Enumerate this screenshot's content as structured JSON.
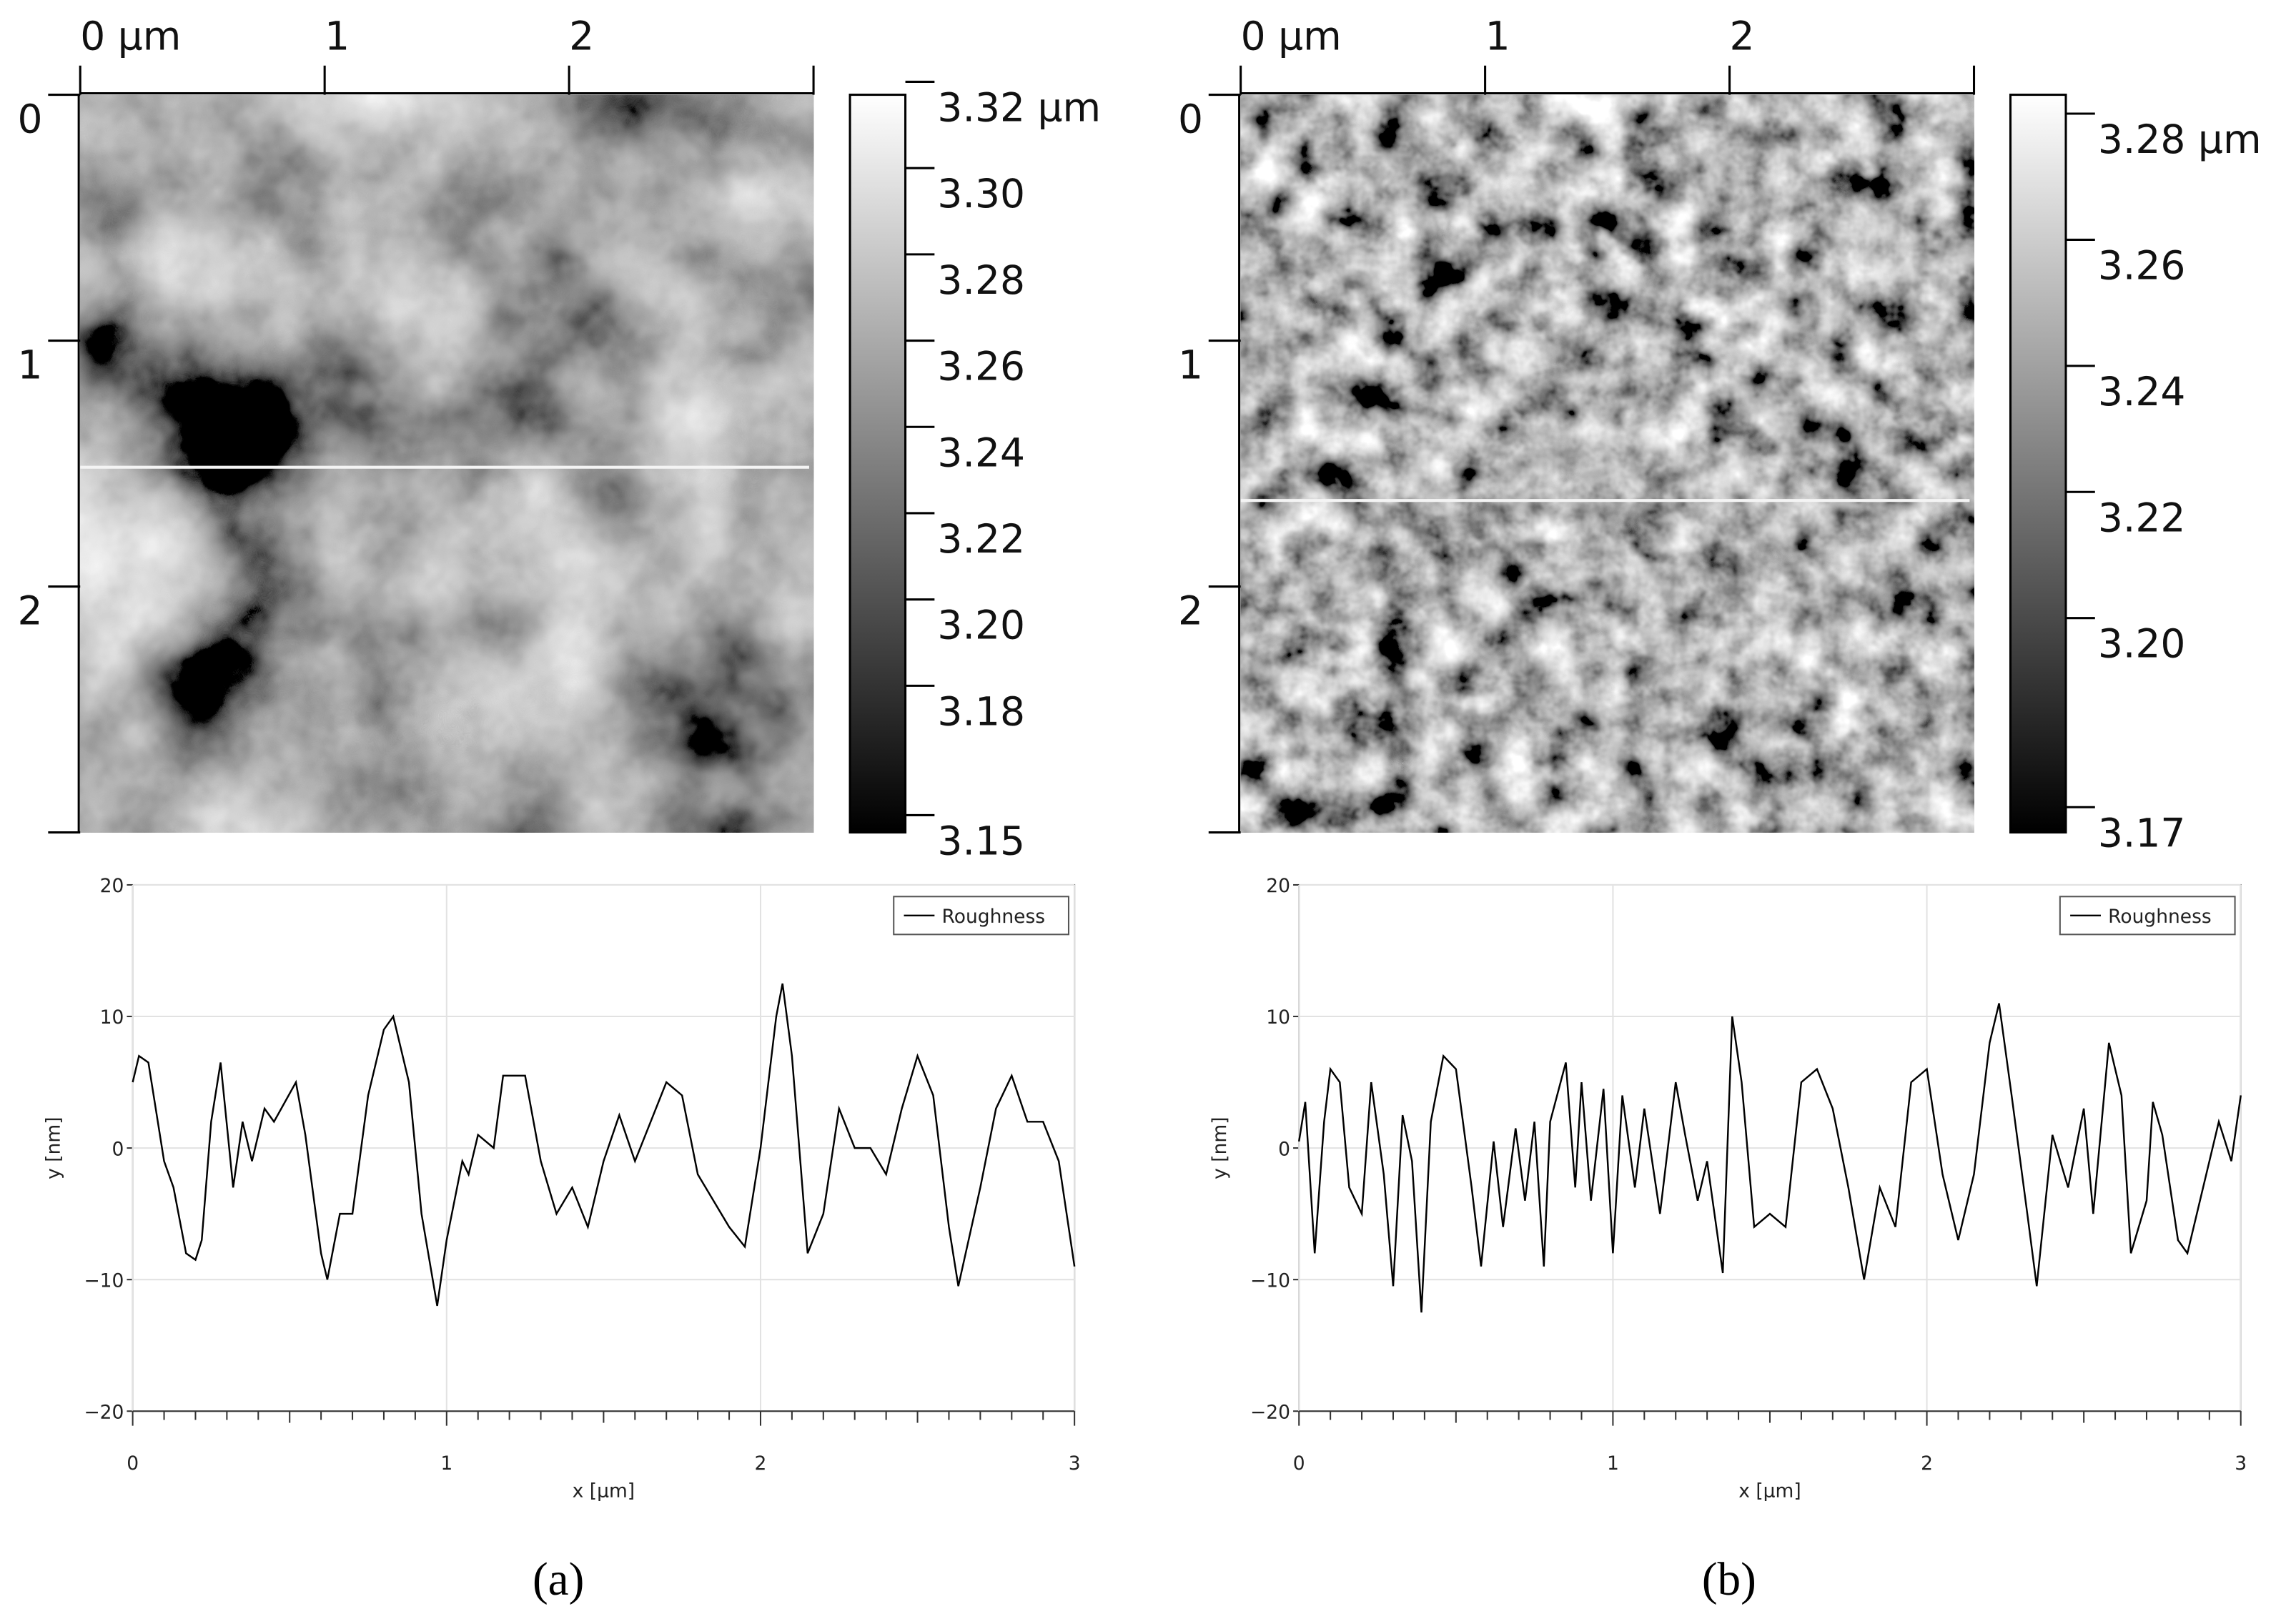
{
  "panel_labels": [
    "(a)",
    "(b)"
  ],
  "chart_data": [
    {
      "type": "image",
      "xlim": [
        0,
        3
      ],
      "ylim": [
        0,
        3
      ],
      "yaxis_inverted": true,
      "xticks": [
        {
          "value": 0,
          "label": "0 µm"
        },
        1,
        2
      ],
      "yticks": [
        0,
        1,
        2
      ],
      "colorbar": {
        "clim": [
          3.146,
          3.317
        ],
        "ticks": [
          {
            "value": 3.32,
            "label": "3.32 µm"
          },
          {
            "value": 3.3,
            "label": "3.30"
          },
          3.28,
          3.26,
          3.24,
          3.22,
          {
            "value": 3.2,
            "label": "3.20"
          },
          3.18,
          3.15
        ]
      },
      "texture": "smooth"
    },
    {
      "type": "line",
      "xlabel": "x [µm]",
      "ylabel": "y [nm]",
      "xlim": [
        0,
        3
      ],
      "ylim": [
        -20,
        20
      ],
      "xticks": [
        0,
        1,
        2,
        3
      ],
      "yticks": [
        20,
        10,
        0,
        {
          "value": -10,
          "label": "−10"
        },
        {
          "value": -20,
          "label": "−20"
        }
      ],
      "grid": true,
      "legend": "upper right",
      "x": [
        0,
        0.02,
        0.05,
        0.08,
        0.1,
        0.13,
        0.17,
        0.2,
        0.22,
        0.25,
        0.28,
        0.32,
        0.35,
        0.38,
        0.42,
        0.45,
        0.52,
        0.55,
        0.6,
        0.62,
        0.66,
        0.7,
        0.75,
        0.8,
        0.83,
        0.88,
        0.92,
        0.97,
        1.0,
        1.05,
        1.07,
        1.1,
        1.15,
        1.18,
        1.25,
        1.3,
        1.35,
        1.4,
        1.45,
        1.5,
        1.55,
        1.6,
        1.65,
        1.7,
        1.75,
        1.8,
        1.85,
        1.9,
        1.95,
        2.0,
        2.05,
        2.07,
        2.1,
        2.15,
        2.2,
        2.25,
        2.3,
        2.35,
        2.4,
        2.45,
        2.5,
        2.55,
        2.6,
        2.63,
        2.7,
        2.75,
        2.8,
        2.85,
        2.9,
        2.95,
        3.0
      ],
      "series": [
        {
          "name": "Roughness",
          "color": "#000000",
          "values": [
            5,
            7,
            6.5,
            2,
            -1,
            -3,
            -8,
            -8.5,
            -7,
            2,
            6.5,
            -3,
            2,
            -1,
            3,
            2,
            5,
            1,
            -8,
            -10,
            -5,
            -5,
            4,
            9,
            10,
            5,
            -5,
            -12,
            -7,
            -1,
            -2,
            1,
            0,
            5.5,
            5.5,
            -1,
            -5,
            -3,
            -6,
            -1,
            2.5,
            -1,
            2,
            5,
            4,
            -2,
            -4,
            -6,
            -7.5,
            0,
            10,
            12.5,
            7,
            -8,
            -5,
            3,
            0,
            0,
            -2,
            3,
            7,
            4,
            -6,
            -10.5,
            -3,
            3,
            5.5,
            2,
            2,
            -1,
            -9
          ]
        }
      ]
    },
    {
      "type": "image",
      "xlim": [
        0,
        3
      ],
      "ylim": [
        0,
        3
      ],
      "yaxis_inverted": true,
      "xticks": [
        {
          "value": 0,
          "label": "0 µm"
        },
        1,
        2
      ],
      "yticks": [
        0,
        1,
        2
      ],
      "colorbar": {
        "clim": [
          3.166,
          3.283
        ],
        "ticks": [
          {
            "value": 3.28,
            "label": "3.28 µm"
          },
          3.26,
          3.24,
          3.22,
          {
            "value": 3.2,
            "label": "3.20"
          },
          3.17
        ]
      },
      "texture": "grainy"
    },
    {
      "type": "line",
      "xlabel": "x [µm]",
      "ylabel": "y [nm]",
      "xlim": [
        0,
        3
      ],
      "ylim": [
        -20,
        20
      ],
      "xticks": [
        0,
        1,
        2,
        3
      ],
      "yticks": [
        20,
        10,
        0,
        {
          "value": -10,
          "label": "−10"
        },
        {
          "value": -20,
          "label": "−20"
        }
      ],
      "grid": true,
      "legend": "upper right",
      "x": [
        0,
        0.02,
        0.05,
        0.08,
        0.1,
        0.13,
        0.16,
        0.2,
        0.23,
        0.27,
        0.3,
        0.33,
        0.36,
        0.39,
        0.42,
        0.46,
        0.5,
        0.55,
        0.58,
        0.62,
        0.65,
        0.69,
        0.72,
        0.75,
        0.78,
        0.8,
        0.85,
        0.88,
        0.9,
        0.93,
        0.97,
        1.0,
        1.03,
        1.07,
        1.1,
        1.15,
        1.2,
        1.23,
        1.27,
        1.3,
        1.35,
        1.38,
        1.41,
        1.45,
        1.5,
        1.55,
        1.6,
        1.65,
        1.7,
        1.75,
        1.8,
        1.85,
        1.9,
        1.95,
        2.0,
        2.05,
        2.1,
        2.15,
        2.2,
        2.23,
        2.27,
        2.32,
        2.35,
        2.4,
        2.45,
        2.5,
        2.53,
        2.58,
        2.62,
        2.65,
        2.7,
        2.72,
        2.75,
        2.8,
        2.83,
        2.88,
        2.93,
        2.97,
        3.0
      ],
      "series": [
        {
          "name": "Roughness",
          "color": "#000000",
          "values": [
            0.5,
            3.5,
            -8,
            2,
            6,
            5,
            -3,
            -5,
            5,
            -2,
            -10.5,
            2.5,
            -1,
            -12.5,
            2,
            7,
            6,
            -3,
            -9,
            0.5,
            -6,
            1.5,
            -4,
            2,
            -9,
            2,
            6.5,
            -3,
            5,
            -4,
            4.5,
            -8,
            4,
            -3,
            3,
            -5,
            5,
            1,
            -4,
            -1,
            -9.5,
            10,
            5,
            -6,
            -5,
            -6,
            5,
            6,
            3,
            -3,
            -10,
            -3,
            -6,
            5,
            6,
            -2,
            -7,
            -2,
            8,
            11,
            4,
            -5,
            -10.5,
            1,
            -3,
            3,
            -5,
            8,
            4,
            -8,
            -4,
            3.5,
            1,
            -7,
            -8,
            -3,
            2,
            -1,
            4
          ]
        }
      ]
    }
  ]
}
